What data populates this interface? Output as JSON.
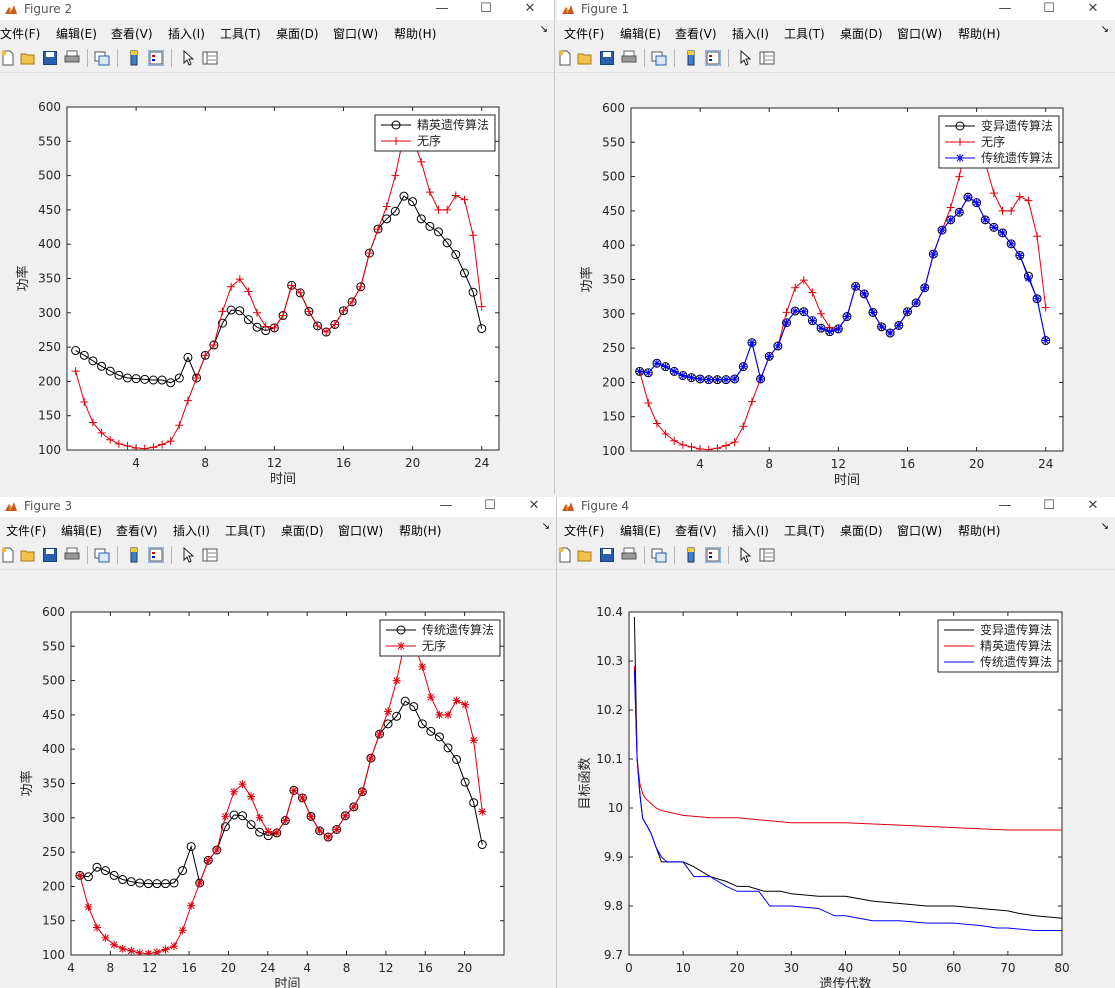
{
  "menu": [
    "文件(F)",
    "编辑(E)",
    "查看(V)",
    "插入(I)",
    "工具(T)",
    "桌面(D)",
    "窗口(W)",
    "帮助(H)"
  ],
  "window_controls": {
    "minimize": "—",
    "maximize": "☐",
    "close": "✕"
  },
  "windows": {
    "fig2": {
      "title": "Figure 2",
      "ylabel": "功率",
      "xlabel": "时间",
      "yticks": [
        "100",
        "150",
        "200",
        "250",
        "300",
        "350",
        "400",
        "450",
        "500",
        "550",
        "600"
      ],
      "xticks": [
        "4",
        "8",
        "12",
        "16",
        "20",
        "24"
      ],
      "legend": [
        "精英遗传算法",
        "无序"
      ]
    },
    "fig1": {
      "title": "Figure 1",
      "ylabel": "功率",
      "xlabel": "时间",
      "yticks": [
        "100",
        "150",
        "200",
        "250",
        "300",
        "350",
        "400",
        "450",
        "500",
        "550",
        "600"
      ],
      "xticks": [
        "4",
        "8",
        "12",
        "16",
        "20",
        "24"
      ],
      "legend": [
        "变异遗传算法",
        "无序",
        "传统遗传算法"
      ]
    },
    "fig3": {
      "title": "Figure 3",
      "ylabel": "功率",
      "xlabel": "时间",
      "yticks": [
        "100",
        "150",
        "200",
        "250",
        "300",
        "350",
        "400",
        "450",
        "500",
        "550",
        "600"
      ],
      "xticks": [
        "4",
        "8",
        "12",
        "16",
        "20",
        "24",
        "4",
        "8",
        "12",
        "16",
        "20"
      ],
      "legend": [
        "传统遗传算法",
        "无序"
      ]
    },
    "fig4": {
      "title": "Figure 4",
      "ylabel": "目标函数",
      "xlabel": "遗传代数",
      "yticks": [
        "9.7",
        "9.8",
        "9.9",
        "10",
        "10.1",
        "10.2",
        "10.3",
        "10.4"
      ],
      "xticks": [
        "0",
        "10",
        "20",
        "30",
        "40",
        "50",
        "60",
        "70",
        "80"
      ],
      "legend": [
        "变异遗传算法",
        "精英遗传算法",
        "传统遗传算法"
      ]
    }
  },
  "colors": {
    "black": "#000000",
    "red": "#e0000f",
    "blue": "#0000ff"
  },
  "chart_data": [
    {
      "type": "line",
      "figure": "Figure 2",
      "xlabel": "时间",
      "ylabel": "功率",
      "xlim": [
        0,
        25
      ],
      "ylim": [
        100,
        600
      ],
      "marker_style": {
        "精英遗传算法": "circle",
        "无序": "plus"
      },
      "series": [
        {
          "name": "精英遗传算法",
          "color": "#000000",
          "marker": "circle",
          "x": [
            0.5,
            1,
            1.5,
            2,
            2.5,
            3,
            3.5,
            4,
            4.5,
            5,
            5.5,
            6,
            6.5,
            7,
            7.5,
            8,
            8.5,
            9,
            9.5,
            10,
            10.5,
            11,
            11.5,
            12,
            12.5,
            13,
            13.5,
            14,
            14.5,
            15,
            15.5,
            16,
            16.5,
            17,
            17.5,
            18,
            18.5,
            19,
            19.5,
            20,
            20.5,
            21,
            21.5,
            22,
            22.5,
            23,
            23.5,
            24
          ],
          "y": [
            245,
            238,
            230,
            222,
            215,
            209,
            205,
            204,
            203,
            202,
            202,
            198,
            205,
            235,
            205,
            238,
            253,
            285,
            304,
            303,
            290,
            279,
            274,
            278,
            296,
            340,
            329,
            302,
            281,
            272,
            283,
            303,
            316,
            338,
            387,
            422,
            437,
            448,
            470,
            462,
            437,
            426,
            418,
            402,
            385,
            358,
            330,
            277
          ]
        },
        {
          "name": "无序",
          "color": "#e0000f",
          "marker": "plus",
          "x": [
            0.5,
            1,
            1.5,
            2,
            2.5,
            3,
            3.5,
            4,
            4.5,
            5,
            5.5,
            6,
            6.5,
            7,
            7.5,
            8,
            8.5,
            9,
            9.5,
            10,
            10.5,
            11,
            11.5,
            12,
            12.5,
            13,
            13.5,
            14,
            14.5,
            15,
            15.5,
            16,
            16.5,
            17,
            17.5,
            18,
            18.5,
            19,
            19.5,
            20,
            20.5,
            21,
            21.5,
            22,
            22.5,
            23,
            23.5,
            24
          ],
          "y": [
            215,
            170,
            140,
            125,
            115,
            109,
            106,
            103,
            102,
            104,
            108,
            113,
            136,
            172,
            205,
            238,
            253,
            302,
            338,
            349,
            331,
            300,
            280,
            278,
            296,
            340,
            329,
            302,
            281,
            272,
            283,
            303,
            316,
            338,
            387,
            422,
            455,
            500,
            560,
            555,
            520,
            476,
            450,
            450,
            471,
            465,
            413,
            309
          ]
        }
      ]
    },
    {
      "type": "line",
      "figure": "Figure 1",
      "xlabel": "时间",
      "ylabel": "功率",
      "xlim": [
        0,
        25
      ],
      "ylim": [
        100,
        600
      ],
      "series": [
        {
          "name": "变异遗传算法",
          "color": "#000000",
          "marker": "circle",
          "x": [
            0.5,
            1,
            1.5,
            2,
            2.5,
            3,
            3.5,
            4,
            4.5,
            5,
            5.5,
            6,
            6.5,
            7,
            7.5,
            8,
            8.5,
            9,
            9.5,
            10,
            10.5,
            11,
            11.5,
            12,
            12.5,
            13,
            13.5,
            14,
            14.5,
            15,
            15.5,
            16,
            16.5,
            17,
            17.5,
            18,
            18.5,
            19,
            19.5,
            20,
            20.5,
            21,
            21.5,
            22,
            22.5,
            23,
            23.5,
            24
          ],
          "y": [
            216,
            214,
            228,
            223,
            216,
            210,
            207,
            205,
            204,
            204,
            204,
            205,
            223,
            258,
            205,
            238,
            253,
            287,
            304,
            303,
            290,
            279,
            274,
            278,
            296,
            340,
            329,
            302,
            281,
            272,
            283,
            303,
            316,
            338,
            387,
            422,
            437,
            448,
            470,
            462,
            437,
            426,
            418,
            402,
            385,
            355,
            322,
            261
          ]
        },
        {
          "name": "无序",
          "color": "#e0000f",
          "marker": "circle",
          "x": [
            0.5,
            1,
            1.5,
            2,
            2.5,
            3,
            3.5,
            4,
            4.5,
            5,
            5.5,
            6,
            6.5,
            7,
            7.5,
            8,
            8.5,
            9,
            9.5,
            10,
            10.5,
            11,
            11.5,
            12,
            12.5,
            13,
            13.5,
            14,
            14.5,
            15,
            15.5,
            16,
            16.5,
            17,
            17.5,
            18,
            18.5,
            19,
            19.5,
            20,
            20.5,
            21,
            21.5,
            22,
            22.5,
            23,
            23.5,
            24
          ],
          "y": [
            216,
            170,
            140,
            125,
            115,
            109,
            106,
            103,
            102,
            104,
            108,
            113,
            136,
            172,
            205,
            238,
            253,
            302,
            338,
            349,
            331,
            300,
            280,
            278,
            296,
            340,
            329,
            302,
            281,
            272,
            283,
            303,
            316,
            338,
            387,
            422,
            455,
            500,
            560,
            555,
            520,
            476,
            450,
            450,
            471,
            465,
            413,
            309
          ]
        },
        {
          "name": "传统遗传算法",
          "color": "#0000ff",
          "marker": "star",
          "x": [
            0.5,
            1,
            1.5,
            2,
            2.5,
            3,
            3.5,
            4,
            4.5,
            5,
            5.5,
            6,
            6.5,
            7,
            7.5,
            8,
            8.5,
            9,
            9.5,
            10,
            10.5,
            11,
            11.5,
            12,
            12.5,
            13,
            13.5,
            14,
            14.5,
            15,
            15.5,
            16,
            16.5,
            17,
            17.5,
            18,
            18.5,
            19,
            19.5,
            20,
            20.5,
            21,
            21.5,
            22,
            22.5,
            23,
            23.5,
            24
          ],
          "y": [
            216,
            214,
            228,
            223,
            216,
            210,
            207,
            205,
            204,
            204,
            204,
            205,
            223,
            258,
            205,
            238,
            253,
            287,
            304,
            303,
            290,
            279,
            274,
            278,
            296,
            340,
            329,
            302,
            281,
            272,
            283,
            303,
            316,
            338,
            387,
            422,
            437,
            448,
            470,
            462,
            437,
            426,
            418,
            402,
            385,
            352,
            322,
            261
          ]
        }
      ]
    },
    {
      "type": "line",
      "figure": "Figure 3",
      "xlabel": "时间",
      "ylabel": "功率",
      "ylim": [
        100,
        600
      ],
      "series": [
        {
          "name": "传统遗传算法",
          "color": "#000000",
          "marker": "circle",
          "y": [
            216,
            214,
            228,
            223,
            216,
            210,
            207,
            205,
            204,
            204,
            204,
            205,
            223,
            258,
            205,
            238,
            253,
            287,
            304,
            303,
            290,
            279,
            274,
            278,
            296,
            340,
            329,
            302,
            281,
            272,
            283,
            303,
            316,
            338,
            387,
            422,
            437,
            448,
            470,
            462,
            437,
            426,
            418,
            402,
            385,
            352,
            322,
            261
          ]
        },
        {
          "name": "无序",
          "color": "#e0000f",
          "marker": "star",
          "y": [
            216,
            170,
            140,
            125,
            115,
            109,
            106,
            103,
            102,
            104,
            108,
            113,
            136,
            172,
            205,
            238,
            253,
            302,
            338,
            349,
            331,
            300,
            280,
            278,
            296,
            340,
            329,
            302,
            281,
            272,
            283,
            303,
            316,
            338,
            387,
            422,
            455,
            500,
            560,
            555,
            520,
            476,
            450,
            450,
            471,
            465,
            413,
            309
          ]
        }
      ]
    },
    {
      "type": "line",
      "figure": "Figure 4",
      "xlabel": "遗传代数",
      "ylabel": "目标函数",
      "xlim": [
        0,
        80
      ],
      "ylim": [
        9.7,
        10.4
      ],
      "series": [
        {
          "name": "变异遗传算法",
          "color": "#000000",
          "x": [
            1,
            1.5,
            2,
            2.5,
            3,
            4,
            5,
            6,
            7,
            10,
            12,
            15,
            18,
            20,
            22,
            25,
            28,
            30,
            35,
            40,
            45,
            50,
            55,
            60,
            65,
            70,
            72,
            75,
            80
          ],
          "y": [
            10.39,
            10.1,
            10.03,
            9.98,
            9.97,
            9.95,
            9.92,
            9.89,
            9.89,
            9.89,
            9.88,
            9.86,
            9.85,
            9.84,
            9.84,
            9.83,
            9.83,
            9.825,
            9.82,
            9.82,
            9.81,
            9.805,
            9.8,
            9.8,
            9.795,
            9.79,
            9.785,
            9.78,
            9.775
          ]
        },
        {
          "name": "精英遗传算法",
          "color": "#e0000f",
          "x": [
            1,
            1.5,
            2,
            2.5,
            3,
            4,
            5,
            6,
            8,
            10,
            15,
            20,
            25,
            30,
            40,
            50,
            60,
            70,
            80
          ],
          "y": [
            10.29,
            10.1,
            10.05,
            10.03,
            10.02,
            10.01,
            10.0,
            9.995,
            9.99,
            9.985,
            9.98,
            9.98,
            9.975,
            9.97,
            9.97,
            9.965,
            9.96,
            9.955,
            9.955
          ]
        },
        {
          "name": "传统遗传算法",
          "color": "#0000ff",
          "x": [
            1,
            1.5,
            2,
            2.5,
            3,
            4,
            5,
            6,
            7,
            10,
            12,
            15,
            18,
            20,
            24,
            26,
            30,
            35,
            38,
            40,
            45,
            50,
            55,
            60,
            65,
            68,
            70,
            75,
            80
          ],
          "y": [
            10.28,
            10.1,
            10.03,
            9.98,
            9.97,
            9.95,
            9.92,
            9.9,
            9.89,
            9.89,
            9.86,
            9.86,
            9.84,
            9.83,
            9.83,
            9.8,
            9.8,
            9.795,
            9.78,
            9.78,
            9.77,
            9.77,
            9.765,
            9.765,
            9.76,
            9.755,
            9.755,
            9.75,
            9.75
          ]
        }
      ]
    }
  ]
}
